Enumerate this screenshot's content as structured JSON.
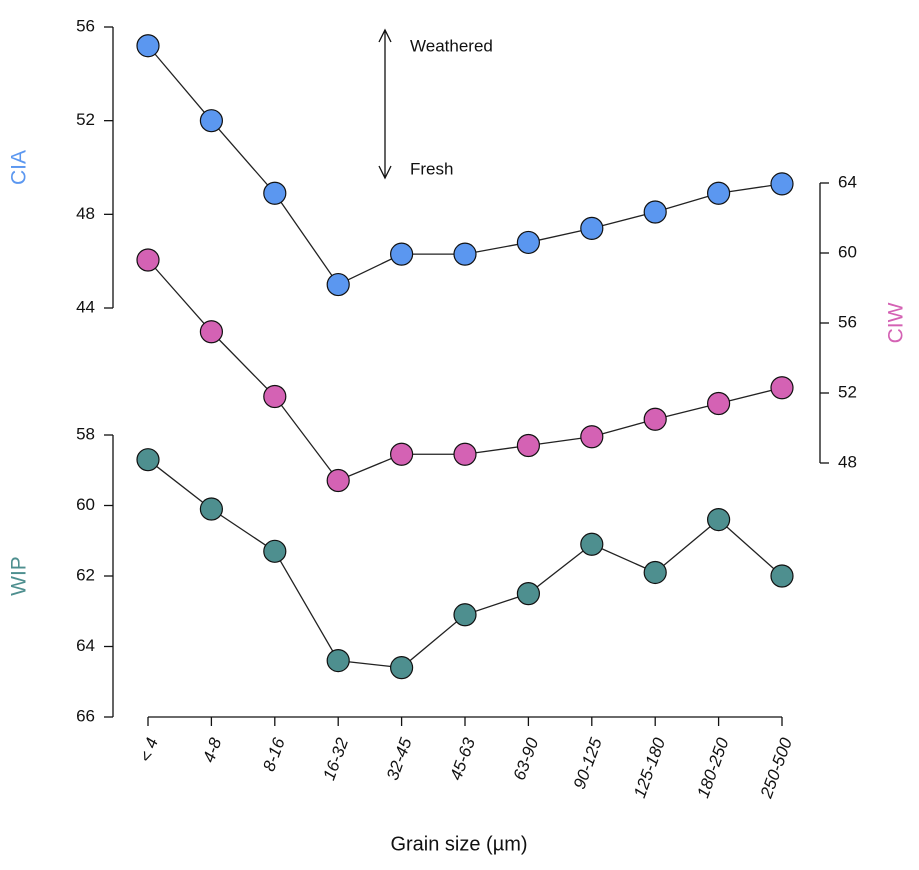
{
  "chart_data": {
    "type": "line",
    "categories": [
      "< 4",
      "4-8",
      "8-16",
      "16-32",
      "32-45",
      "45-63",
      "63-90",
      "90-125",
      "125-180",
      "180-250",
      "250-500"
    ],
    "xlabel": "Grain size (µm)",
    "annotations": [
      "Weathered",
      "Fresh"
    ],
    "panels": [
      {
        "ylabel": "CIA",
        "side": "left",
        "color": "#5b97f0",
        "ylim": [
          44,
          56
        ],
        "yticks": [
          44,
          48,
          52,
          56
        ],
        "values": [
          55.2,
          52.0,
          48.9,
          45.0,
          46.3,
          46.3,
          46.8,
          47.4,
          48.1,
          48.9,
          49.3
        ]
      },
      {
        "ylabel": "CIW",
        "side": "right",
        "color": "#d462b4",
        "ylim": [
          48,
          64
        ],
        "yticks": [
          48,
          52,
          56,
          60,
          64
        ],
        "values": [
          59.6,
          55.5,
          51.8,
          47.0,
          48.5,
          48.5,
          49.0,
          49.5,
          50.5,
          51.4,
          52.3
        ]
      },
      {
        "ylabel": "WIP",
        "side": "left",
        "color": "#4e8f8f",
        "ylim": [
          58,
          66
        ],
        "yticks": [
          58,
          60,
          62,
          64,
          66
        ],
        "inverted": true,
        "values": [
          58.7,
          60.1,
          61.3,
          64.4,
          64.6,
          63.1,
          62.5,
          61.1,
          61.9,
          60.4,
          62.0
        ]
      }
    ]
  }
}
